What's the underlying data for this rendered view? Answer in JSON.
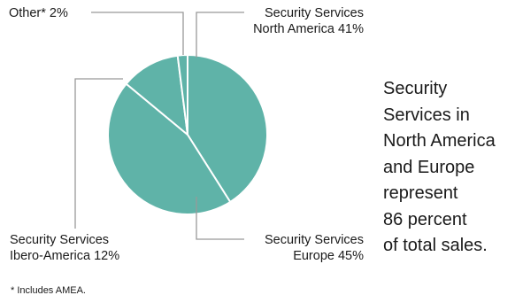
{
  "chart_data": {
    "type": "pie",
    "colors": {
      "slice": "#5fb3a8",
      "edge": "#ffffff",
      "leader": "#999999"
    },
    "slices": [
      {
        "label_lines": [
          "Security Services",
          "North America 41%"
        ],
        "value": 41
      },
      {
        "label_lines": [
          "Security Services",
          "Europe 45%"
        ],
        "value": 45
      },
      {
        "label_lines": [
          "Security Services",
          "Ibero-America 12%"
        ],
        "value": 12
      },
      {
        "label_lines": [
          "Other* 2%"
        ],
        "value": 2
      }
    ]
  },
  "summary": {
    "lines": [
      "Security",
      "Services in",
      "North America",
      "and Europe",
      "represent",
      "86 percent",
      "of total sales."
    ]
  },
  "footnote": "* Includes AMEA."
}
